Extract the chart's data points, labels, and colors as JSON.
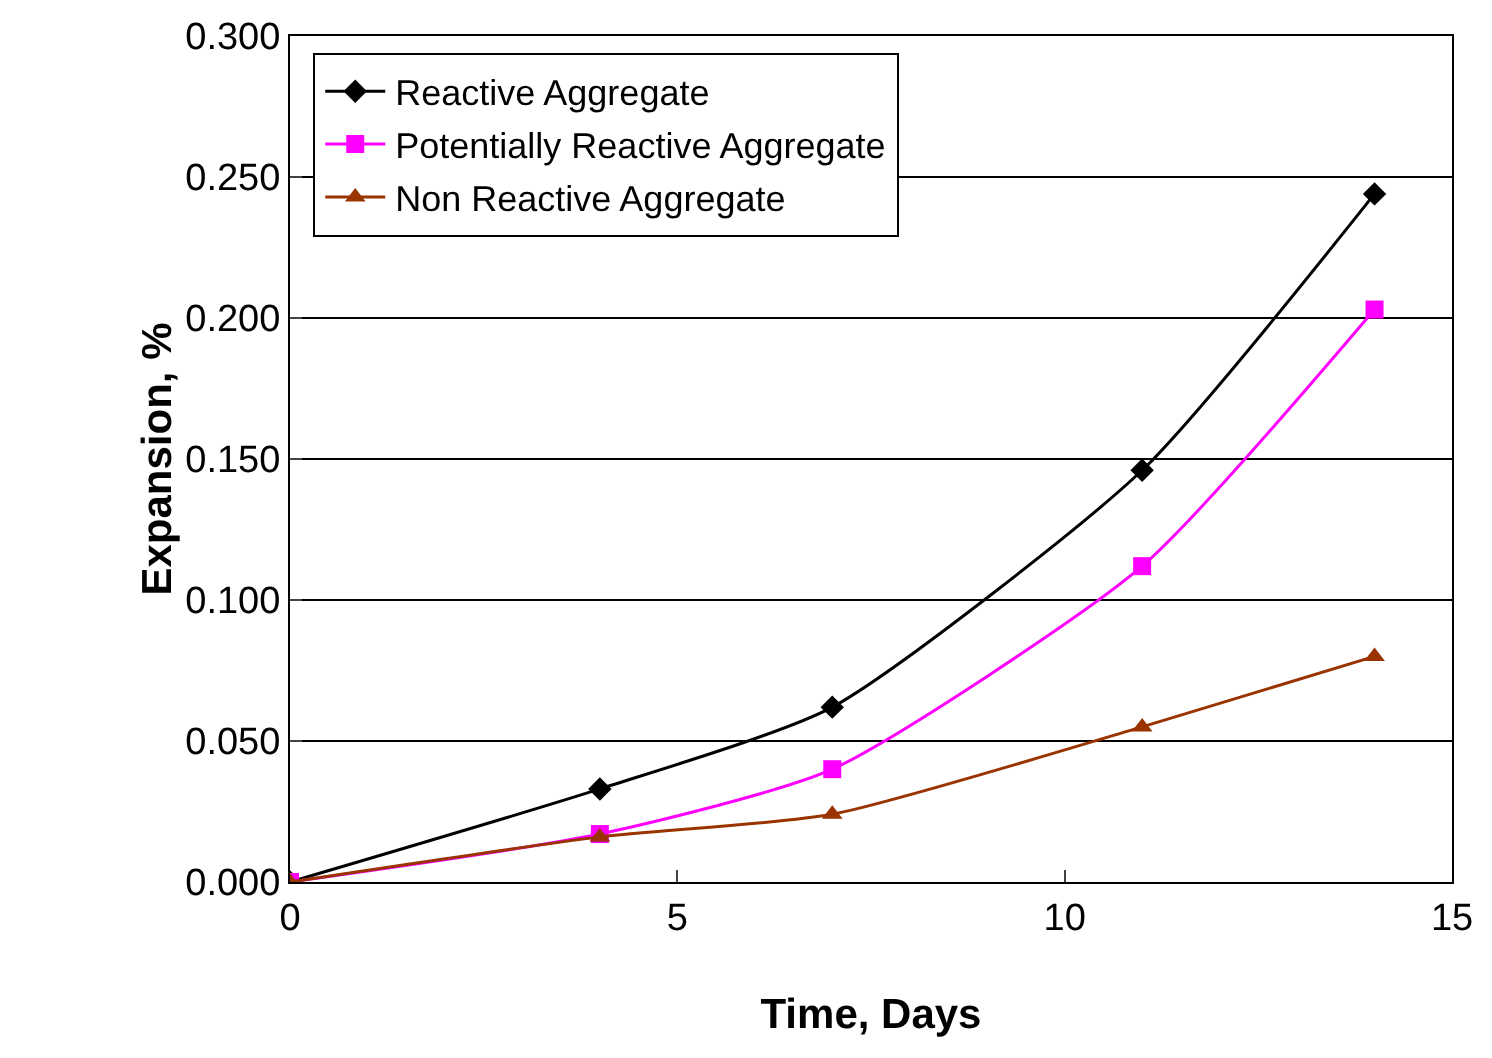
{
  "chart_data": {
    "type": "line",
    "xlabel": "Time, Days",
    "ylabel": "Expansion, %",
    "x": [
      0,
      4,
      7,
      11,
      14
    ],
    "series": [
      {
        "name": "Reactive Aggregate",
        "color": "#000000",
        "marker": "diamond",
        "values": [
          0,
          0.033,
          0.062,
          0.146,
          0.244
        ]
      },
      {
        "name": "Potentially Reactive Aggregate",
        "color": "#ff00ff",
        "marker": "square",
        "values": [
          0,
          0.017,
          0.04,
          0.112,
          0.203
        ]
      },
      {
        "name": "Non Reactive Aggregate",
        "color": "#993300",
        "marker": "triangle",
        "values": [
          0,
          0.016,
          0.024,
          0.055,
          0.08
        ]
      }
    ],
    "xlim": [
      0,
      15
    ],
    "xticks": [
      0,
      5,
      10,
      15
    ],
    "ylim": [
      0,
      0.3
    ],
    "yticks": [
      {
        "value": 0,
        "label": "0.000"
      },
      {
        "value": 0.05,
        "label": "0.050"
      },
      {
        "value": 0.1,
        "label": "0.100"
      },
      {
        "value": 0.15,
        "label": "0.150"
      },
      {
        "value": 0.2,
        "label": "0.200"
      },
      {
        "value": 0.25,
        "label": "0.250"
      },
      {
        "value": 0.3,
        "label": "0.300"
      }
    ],
    "grid": "y",
    "legend": "top left",
    "line_style": "solid"
  }
}
